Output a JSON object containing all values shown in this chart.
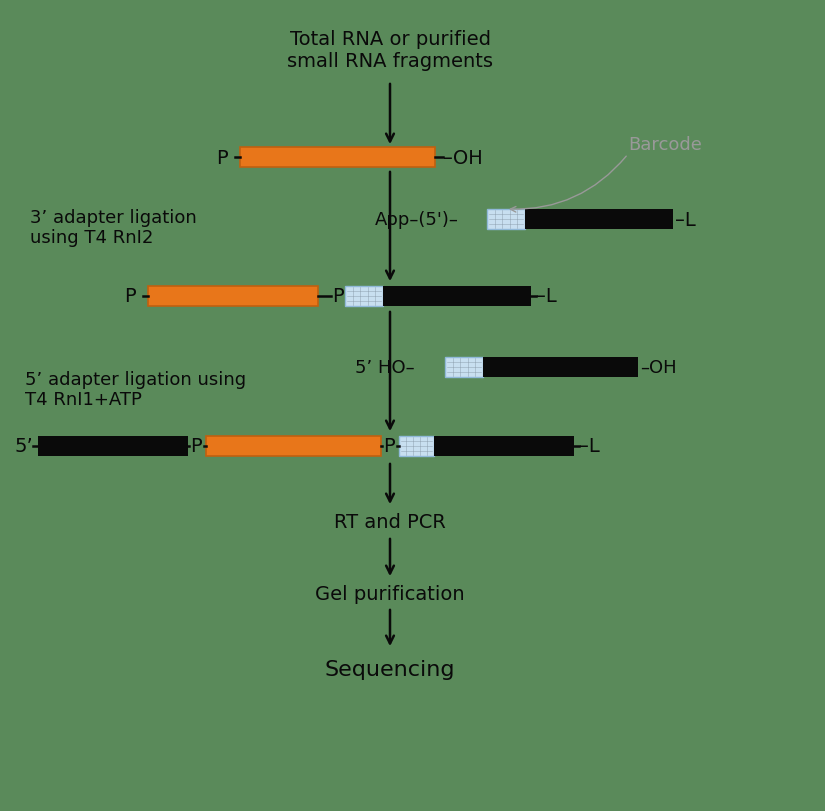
{
  "bg_color": "#5a8a5a",
  "orange_color": "#E8761A",
  "black_color": "#0a0a0a",
  "barcode_color": "#c8dff0",
  "text_color": "#0a0a0a",
  "gray_text_color": "#999999",
  "step0_text": "Total RNA or purified\nsmall RNA fragments",
  "step1_label": "3’ adapter ligation\nusing T4 RnI2",
  "step2_label": "5’ adapter ligation using\nT4 RnI1+ATP",
  "step3_label": "RT and PCR",
  "step4_label": "Gel purification",
  "step5_label": "Sequencing",
  "barcode_label": "Barcode",
  "app_label": "App–(5')–",
  "ho_label": "5’ HO–",
  "p_label": "P",
  "oh_label": "–OH",
  "l_label": "–L",
  "five_prime": "5’"
}
